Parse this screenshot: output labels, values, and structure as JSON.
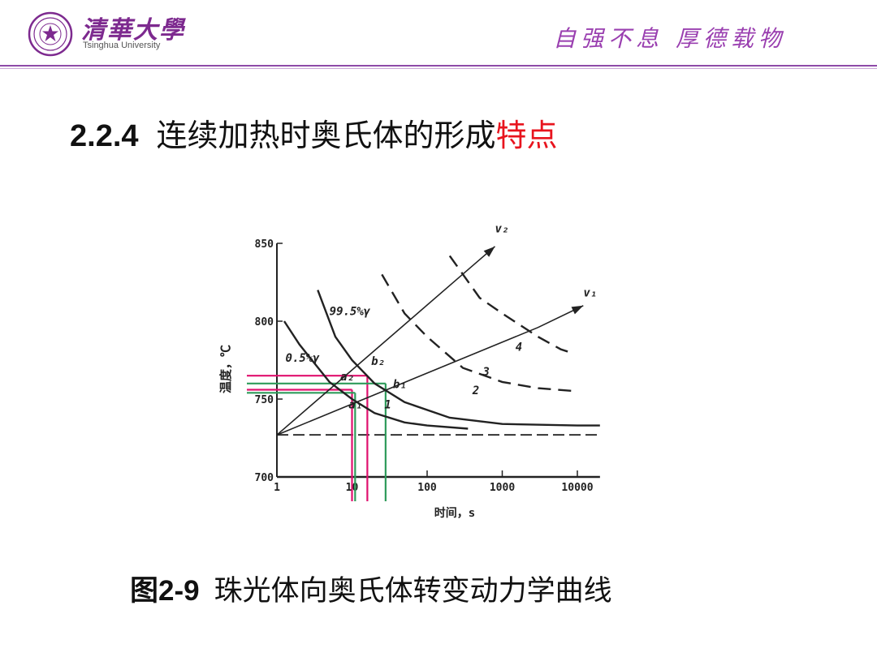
{
  "header": {
    "logo_text_cn": "清華大學",
    "logo_text_en": "Tsinghua University",
    "motto": "自强不息  厚德载物",
    "colors": {
      "brand_purple": "#7d2a8f",
      "rule": "#8e4aa8"
    }
  },
  "title": {
    "number": "2.2.4",
    "text": "连续加热时奥氏体的形成",
    "highlight": "特点",
    "highlight_color": "#e8141e"
  },
  "caption": {
    "figure": "图2-9",
    "text": "珠光体向奥氏体转变动力学曲线"
  },
  "chart_data": {
    "type": "line",
    "xlabel": "时间，s",
    "ylabel": "温度，℃",
    "x_scale": "log",
    "xlim": [
      1,
      20000
    ],
    "ylim": [
      700,
      850
    ],
    "x_ticks": [
      1,
      10,
      100,
      1000,
      10000
    ],
    "y_ticks": [
      700,
      750,
      800,
      850
    ],
    "x_tick_labels": [
      "1",
      "10",
      "100",
      "1000",
      "10000"
    ],
    "y_tick_labels": [
      "700",
      "750",
      "800",
      "850"
    ],
    "baseline_temperature": 727,
    "series": [
      {
        "name": "0.5%γ",
        "style": "solid",
        "points": [
          [
            1.25,
            800
          ],
          [
            2,
            785
          ],
          [
            5,
            761
          ],
          [
            10,
            750
          ],
          [
            20,
            741
          ],
          [
            50,
            735
          ],
          [
            100,
            733
          ],
          [
            350,
            731
          ]
        ]
      },
      {
        "name": "99.5%γ",
        "style": "solid",
        "points": [
          [
            3.5,
            820
          ],
          [
            6,
            790
          ],
          [
            10,
            775
          ],
          [
            20,
            760
          ],
          [
            50,
            748
          ],
          [
            200,
            738
          ],
          [
            1000,
            734
          ],
          [
            10000,
            733
          ],
          [
            20000,
            733
          ]
        ]
      },
      {
        "name": "3",
        "style": "dashed",
        "points": [
          [
            25,
            830
          ],
          [
            50,
            805
          ],
          [
            100,
            790
          ],
          [
            300,
            770
          ],
          [
            1000,
            761
          ],
          [
            3000,
            757
          ],
          [
            10000,
            755
          ]
        ]
      },
      {
        "name": "4",
        "style": "dashed",
        "points": [
          [
            200,
            842
          ],
          [
            500,
            815
          ],
          [
            1000,
            805
          ],
          [
            3000,
            790
          ],
          [
            6000,
            782
          ],
          [
            8000,
            780
          ]
        ]
      },
      {
        "name": "v₂",
        "style": "solid",
        "points": [
          [
            1,
            727
          ],
          [
            250,
            827
          ],
          [
            800,
            848
          ]
        ]
      },
      {
        "name": "v₁",
        "style": "solid",
        "points": [
          [
            1,
            727
          ],
          [
            3000,
            796
          ],
          [
            12000,
            810
          ]
        ]
      }
    ],
    "guides": [
      {
        "color": "#e0106e",
        "temperature": 765,
        "time": 16
      },
      {
        "color": "#e0106e",
        "temperature": 756,
        "time": 10
      },
      {
        "color": "#2e9b5a",
        "temperature": 760,
        "time": 28
      },
      {
        "color": "#2e9b5a",
        "temperature": 754,
        "time": 11
      }
    ],
    "annotations": [
      {
        "text": "0.5%γ",
        "x": 1.3,
        "y": 774
      },
      {
        "text": "99.5%γ",
        "x": 5,
        "y": 804
      },
      {
        "text": "b₂",
        "x": 18,
        "y": 772
      },
      {
        "text": "a₂",
        "x": 7,
        "y": 762
      },
      {
        "text": "b₁",
        "x": 35,
        "y": 757
      },
      {
        "text": "a₁",
        "x": 9,
        "y": 744
      },
      {
        "text": "1",
        "x": 27,
        "y": 744
      },
      {
        "text": "2",
        "x": 400,
        "y": 753
      },
      {
        "text": "3",
        "x": 550,
        "y": 765
      },
      {
        "text": "4",
        "x": 1500,
        "y": 781
      },
      {
        "text": "v₂",
        "x": 800,
        "y": 857
      },
      {
        "text": "v₁",
        "x": 12000,
        "y": 816
      }
    ]
  }
}
